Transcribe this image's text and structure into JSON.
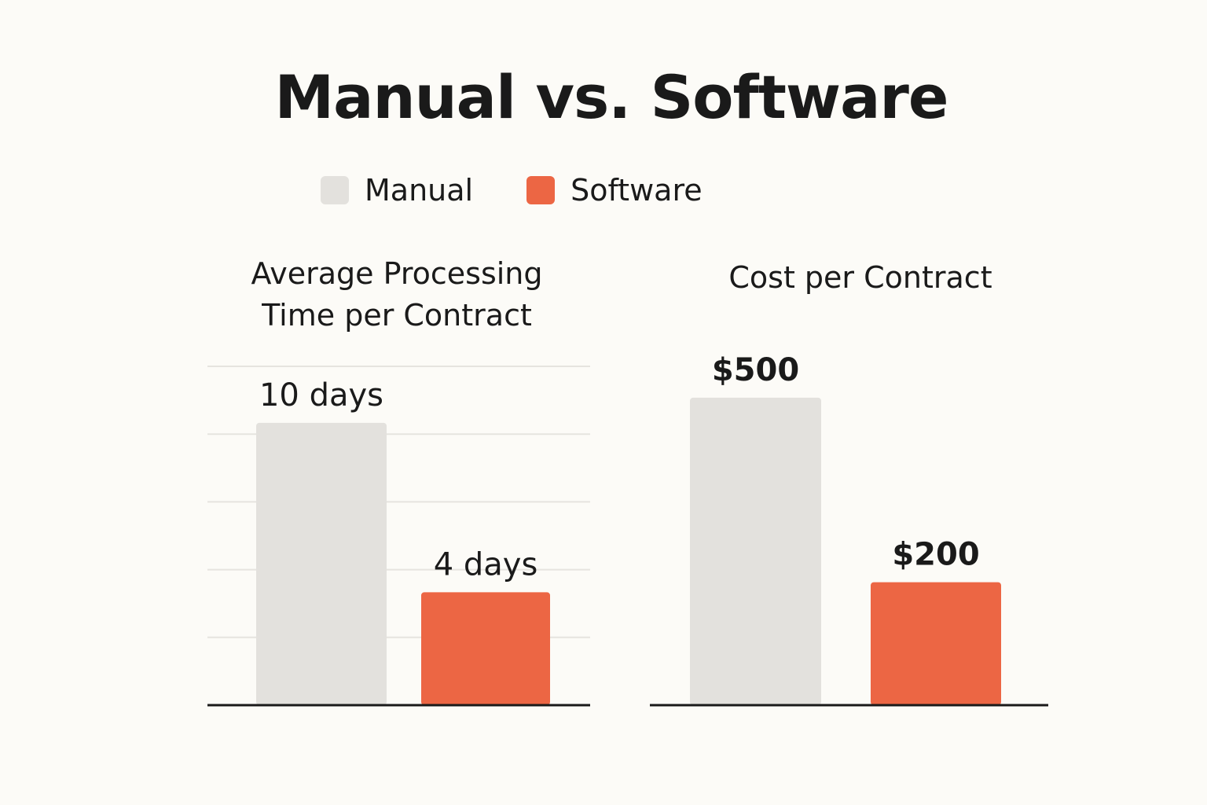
{
  "title": "Manual vs. Software",
  "legend": [
    {
      "name": "Manual",
      "color": "#e3e1dd"
    },
    {
      "name": "Software",
      "color": "#ec6644"
    }
  ],
  "chart_data": [
    {
      "type": "bar",
      "title": "Average Processing Time per Contract",
      "title_lines": [
        "Average Processing",
        "Time per Contract"
      ],
      "categories": [
        "Manual",
        "Software"
      ],
      "values": [
        10,
        4
      ],
      "data_labels": [
        "10 days",
        "4 days"
      ],
      "ylim": [
        0,
        12
      ],
      "grid": true,
      "legend": "top"
    },
    {
      "type": "bar",
      "title": "Cost per Contract",
      "title_lines": [
        "Cost per Contract"
      ],
      "categories": [
        "Manual",
        "Software"
      ],
      "values": [
        500,
        200
      ],
      "data_labels": [
        "$500",
        "$200"
      ],
      "ylim": [
        0,
        560
      ],
      "grid": false,
      "legend": "top"
    }
  ],
  "colors": {
    "manual": "#e3e1dd",
    "software": "#ec6644",
    "axis": "#1a1a1a",
    "grid": "#e6e4df",
    "background": "#fcfbf7"
  }
}
